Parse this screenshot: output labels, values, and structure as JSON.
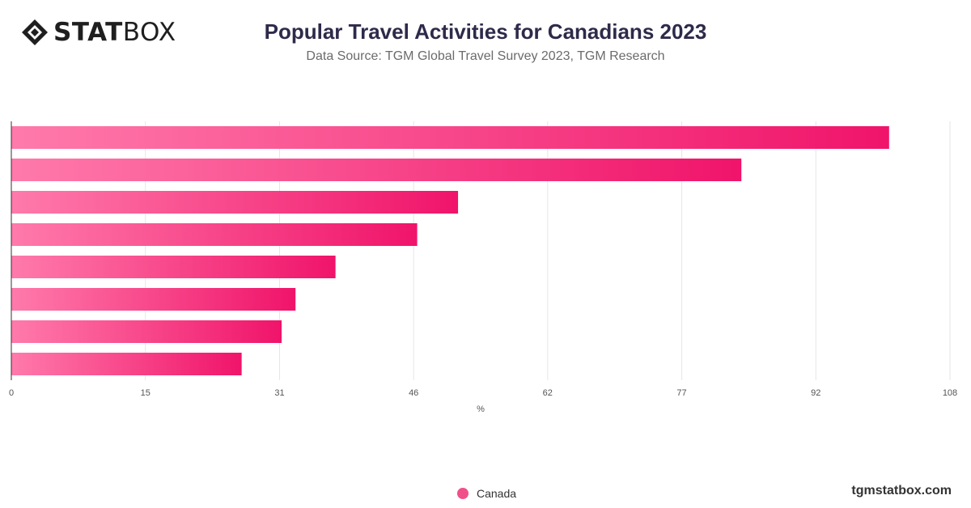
{
  "brand": {
    "logo_bold": "STAT",
    "logo_light": "BOX",
    "site": "tgmstatbox.com",
    "accent_start": "#ff7aab",
    "accent_end": "#f0146a"
  },
  "chart_data": {
    "type": "bar",
    "orientation": "horizontal",
    "title": "Popular Travel Activities for Canadians 2023",
    "subtitle": "Data Source: TGM Global Travel Survey 2023, TGM Research",
    "xlabel": "%",
    "xlim": [
      0,
      108
    ],
    "ticks": [
      "0",
      "15",
      "31",
      "46",
      "62",
      "77",
      "92",
      "108"
    ],
    "tick_values": [
      0,
      15.43,
      30.86,
      46.29,
      61.71,
      77.14,
      92.57,
      108
    ],
    "grid": true,
    "legend_position": "bottom-center",
    "series": [
      {
        "name": "Canada",
        "values": [
          101,
          84,
          51.4,
          46.7,
          37.3,
          32.7,
          31.1,
          26.5
        ]
      }
    ]
  }
}
